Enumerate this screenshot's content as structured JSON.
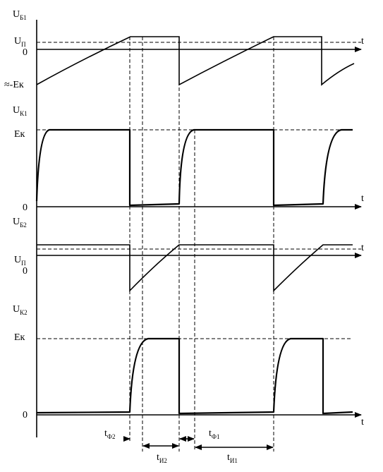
{
  "labels": {
    "u_b1": "U",
    "u_b1_sub": "Б1",
    "u_p_1": "U",
    "u_p_1_sub": "П",
    "zero_1": "0",
    "minus_ek": "≈-Eк",
    "u_k1": "U",
    "u_k1_sub": "К1",
    "ek_1": "Eк",
    "zero_2": "0",
    "u_b2": "U",
    "u_b2_sub": "Б2",
    "u_p_2": "U",
    "u_p_2_sub": "П",
    "zero_3": "0",
    "u_k2": "U",
    "u_k2_sub": "К2",
    "ek_2": "Eк",
    "zero_4": "0",
    "t": "t",
    "t_f2": "t",
    "t_f2_sub": "Ф2",
    "t_i2": "t",
    "t_i2_sub": "И2",
    "t_f1": "t",
    "t_f1_sub": "Ф1",
    "t_i1": "t",
    "t_i1_sub": "И1"
  }
}
